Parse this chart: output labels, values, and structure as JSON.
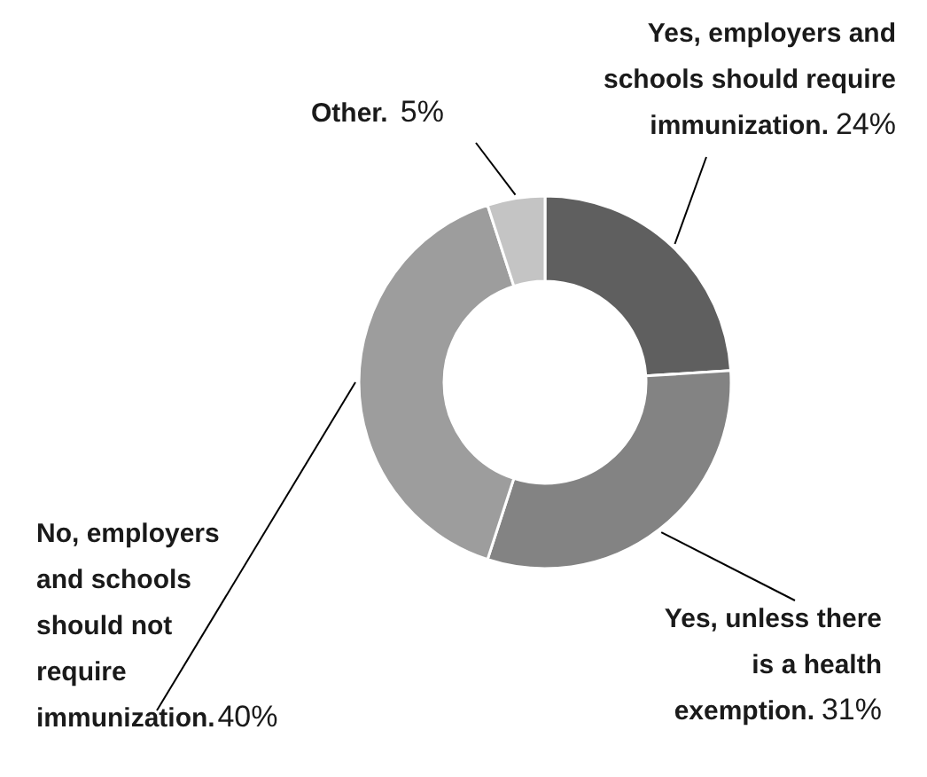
{
  "chart_data": {
    "type": "donut",
    "categories": [
      "Yes, employers and schools should require immunization.",
      "Yes, unless there is a health exemption.",
      "No, employers and schools should not require immunization.",
      "Other."
    ],
    "values": [
      24,
      31,
      40,
      5
    ],
    "value_labels": [
      "24%",
      "31%",
      "40%",
      "5%"
    ],
    "colors": [
      "#5f5f5f",
      "#838383",
      "#9d9d9d",
      "#c4c4c4"
    ]
  }
}
